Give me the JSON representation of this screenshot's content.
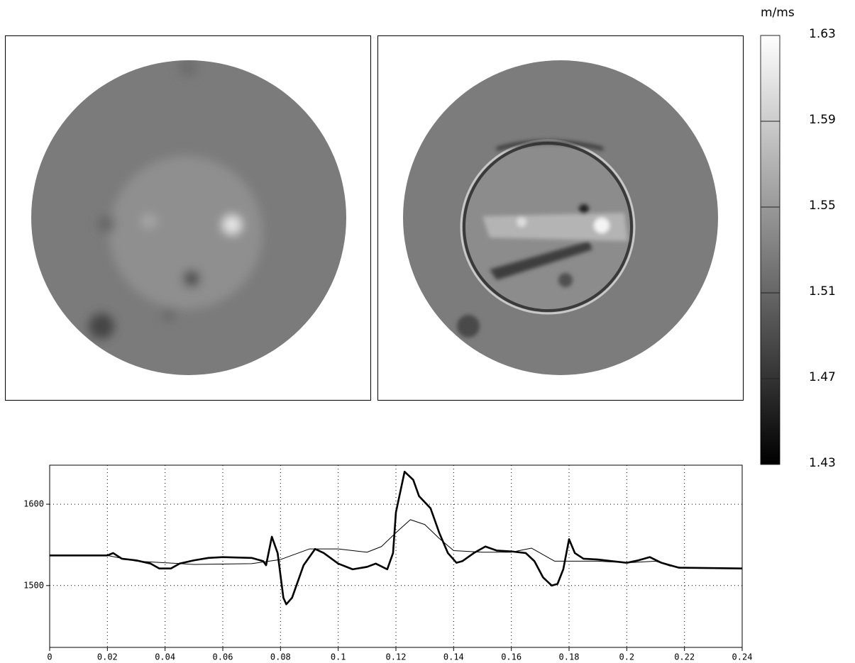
{
  "chart_data": [
    {
      "type": "colorbar",
      "unit": "m/ms",
      "clim": [
        1.43,
        1.63
      ],
      "cticks": [
        1.43,
        1.47,
        1.51,
        1.55,
        1.59,
        1.63
      ],
      "colors": [
        "#000000",
        "#ffffff"
      ]
    },
    {
      "type": "line",
      "series": [
        {
          "color": "#000000",
          "line_width": 2.6,
          "x": [
            0,
            0.02,
            0.022,
            0.025,
            0.03,
            0.035,
            0.038,
            0.042,
            0.045,
            0.05,
            0.055,
            0.06,
            0.07,
            0.074,
            0.075,
            0.077,
            0.079,
            0.081,
            0.082,
            0.084,
            0.088,
            0.092,
            0.095,
            0.1,
            0.105,
            0.11,
            0.113,
            0.117,
            0.119,
            0.12,
            0.123,
            0.126,
            0.128,
            0.132,
            0.135,
            0.138,
            0.141,
            0.143,
            0.147,
            0.151,
            0.155,
            0.16,
            0.165,
            0.168,
            0.171,
            0.174,
            0.176,
            0.178,
            0.18,
            0.182,
            0.185,
            0.19,
            0.195,
            0.2,
            0.204,
            0.208,
            0.212,
            0.215,
            0.218,
            0.24
          ],
          "values": [
            1537,
            1537,
            1540,
            1533,
            1531,
            1527,
            1521,
            1521,
            1527,
            1531,
            1534,
            1535,
            1534,
            1530,
            1525,
            1560,
            1540,
            1485,
            1477,
            1485,
            1525,
            1545,
            1540,
            1527,
            1520,
            1523,
            1527,
            1520,
            1540,
            1590,
            1640,
            1630,
            1610,
            1595,
            1565,
            1540,
            1528,
            1530,
            1540,
            1548,
            1543,
            1542,
            1540,
            1530,
            1510,
            1500,
            1502,
            1520,
            1557,
            1540,
            1533,
            1532,
            1530,
            1528,
            1531,
            1535,
            1528,
            1525,
            1522,
            1521
          ]
        },
        {
          "color": "#000000",
          "line_width": 1,
          "x": [
            0,
            0.02,
            0.03,
            0.05,
            0.07,
            0.08,
            0.09,
            0.1,
            0.11,
            0.115,
            0.12,
            0.125,
            0.13,
            0.135,
            0.14,
            0.15,
            0.16,
            0.167,
            0.175,
            0.19,
            0.2,
            0.21,
            0.215,
            0.22,
            0.24
          ],
          "values": [
            1537,
            1537,
            1530,
            1526,
            1527,
            1532,
            1545,
            1545,
            1541,
            1548,
            1565,
            1581,
            1575,
            1558,
            1543,
            1541,
            1541,
            1546,
            1530,
            1530,
            1528,
            1530,
            1524,
            1522,
            1521
          ]
        }
      ],
      "xlim": [
        0,
        0.24
      ],
      "xticks": [
        0,
        0.02,
        0.04,
        0.06,
        0.08,
        0.1,
        0.12,
        0.14,
        0.16,
        0.18,
        0.2,
        0.22,
        0.24
      ],
      "ylim": [
        1424,
        1648
      ],
      "yticks": [
        1500,
        1600
      ],
      "grid": true
    }
  ]
}
